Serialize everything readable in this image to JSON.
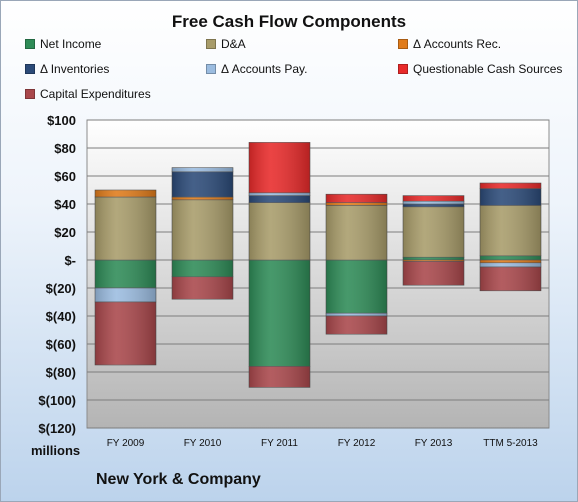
{
  "chart_data": {
    "type": "bar",
    "stacked": true,
    "title": "Free Cash Flow Components",
    "categories": [
      "FY 2009",
      "FY 2010",
      "FY 2011",
      "FY 2012",
      "FY 2013",
      "TTM 5-2013"
    ],
    "ylim": [
      -120,
      100
    ],
    "yticks": [
      100,
      80,
      60,
      40,
      20,
      0,
      -20,
      -40,
      -60,
      -80,
      -100,
      -120
    ],
    "ytick_labels": [
      "$100",
      "$80",
      "$60",
      "$40",
      "$20",
      "$-",
      "$(20)",
      "$(40)",
      "$(60)",
      "$(80)",
      "$(100)",
      "$(120)"
    ],
    "grid": true,
    "legend_position": "top",
    "series": [
      {
        "name": "Net Income",
        "color": "#2e8b57",
        "values": [
          -20,
          -12,
          -76,
          -38,
          2,
          3
        ]
      },
      {
        "name": "D&A",
        "color": "#a89c6a",
        "values": [
          45,
          43,
          41,
          39,
          36,
          36
        ]
      },
      {
        "name": "Δ Accounts Rec.",
        "color": "#e07b1a",
        "values": [
          5,
          2,
          0,
          2,
          -1,
          -2
        ]
      },
      {
        "name": "Δ Inventories",
        "color": "#2b4a78",
        "values": [
          0,
          18,
          5,
          0,
          2,
          12
        ]
      },
      {
        "name": "Δ Accounts Pay.",
        "color": "#9bbce0",
        "values": [
          -10,
          3,
          2,
          -2,
          2,
          -3
        ]
      },
      {
        "name": "Questionable Cash Sources",
        "color": "#e82a2a",
        "values": [
          0,
          0,
          36,
          6,
          4,
          4
        ]
      },
      {
        "name": "Capital Expenditures",
        "color": "#a9474b",
        "values": [
          -45,
          -16,
          -15,
          -13,
          -17,
          -17
        ]
      }
    ]
  },
  "units_label": "millions",
  "company_label": "New York & Company"
}
